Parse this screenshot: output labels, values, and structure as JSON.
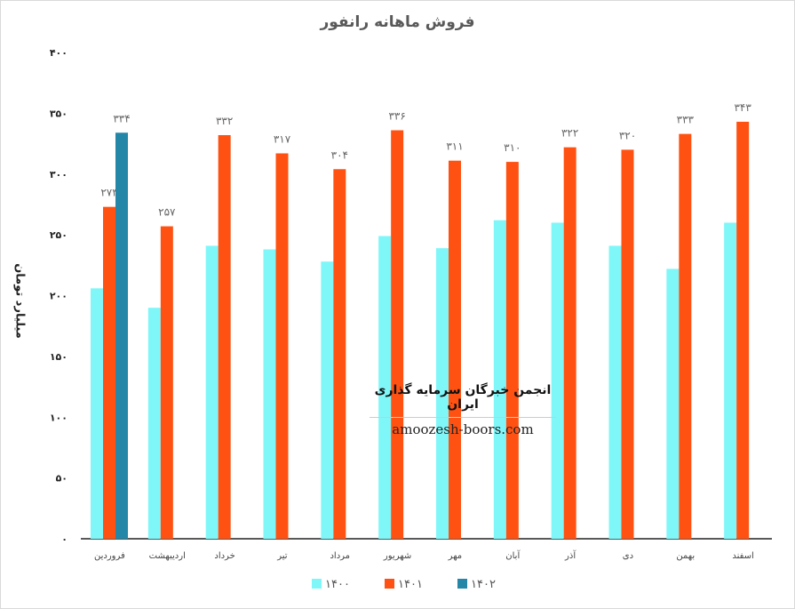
{
  "chart_data": {
    "type": "bar",
    "title": "فروش ماهانه رانفور",
    "ylabel": "میلیارد تومان",
    "xlabel": "",
    "ylim": [
      0,
      400
    ],
    "yticks": [
      "۰",
      "۵۰",
      "۱۰۰",
      "۱۵۰",
      "۲۰۰",
      "۲۵۰",
      "۳۰۰",
      "۳۵۰",
      "۴۰۰"
    ],
    "ytick_values": [
      0,
      50,
      100,
      150,
      200,
      250,
      300,
      350,
      400
    ],
    "categories": [
      "فروردین",
      "اردیبهشت",
      "خرداد",
      "تیر",
      "مرداد",
      "شهریور",
      "مهر",
      "آبان",
      "آذر",
      "دی",
      "بهمن",
      "اسفند"
    ],
    "series": [
      {
        "name": "۱۴۰۰",
        "color": "#7ff7f9",
        "values": [
          206,
          190,
          241,
          238,
          228,
          249,
          239,
          262,
          260,
          241,
          222,
          260
        ],
        "labels": null
      },
      {
        "name": "۱۴۰۱",
        "color": "#ff5212",
        "values": [
          273,
          257,
          332,
          317,
          304,
          336,
          311,
          310,
          322,
          320,
          333,
          343
        ],
        "labels": [
          "۲۷۳",
          "۲۵۷",
          "۳۳۲",
          "۳۱۷",
          "۳۰۴",
          "۳۳۶",
          "۳۱۱",
          "۳۱۰",
          "۳۲۲",
          "۳۲۰",
          "۳۳۳",
          "۳۴۳"
        ]
      },
      {
        "name": "۱۴۰۲",
        "color": "#2587a8",
        "values": [
          334,
          null,
          null,
          null,
          null,
          null,
          null,
          null,
          null,
          null,
          null,
          null
        ],
        "labels": [
          "۳۳۴",
          null,
          null,
          null,
          null,
          null,
          null,
          null,
          null,
          null,
          null,
          null
        ]
      }
    ],
    "legend": "bottom",
    "grid": false
  },
  "watermark": {
    "title": "انجمن خبرگان سرمایه گذاری ایران",
    "site": "amoozesh-boors.com"
  }
}
